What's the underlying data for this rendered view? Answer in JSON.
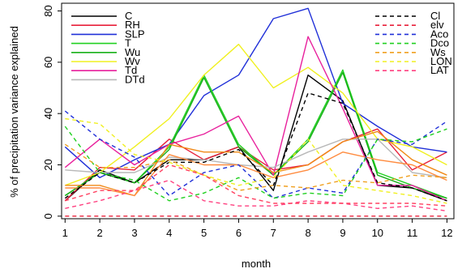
{
  "chart_data": {
    "type": "line",
    "xlabel": "month",
    "ylabel": "% of precipitation variance explained",
    "x": [
      1,
      2,
      3,
      4,
      5,
      6,
      7,
      8,
      9,
      10,
      11,
      12
    ],
    "xticks": [
      "1",
      "2",
      "3",
      "4",
      "5",
      "6",
      "7",
      "8",
      "9",
      "10",
      "11",
      "12"
    ],
    "yticks": [
      "0",
      "20",
      "40",
      "60",
      "80"
    ],
    "xlim": [
      0.9,
      12.2
    ],
    "ylim": [
      -1,
      83
    ],
    "grid": false,
    "legend_left": [
      "C",
      "RH",
      "SLP",
      "T",
      "Wu",
      "Wv",
      "Td",
      "DTd"
    ],
    "legend_right": [
      "Cl",
      "elv",
      "Aco",
      "Dco",
      "Ws",
      "LON",
      "LAT"
    ],
    "series": [
      {
        "name": "C",
        "color": "#000000",
        "dash": "solid",
        "values": [
          6,
          18,
          13,
          22,
          22,
          27,
          10,
          55,
          45,
          12,
          11,
          6
        ]
      },
      {
        "name": "RH",
        "color": "#e8203a",
        "dash": "solid",
        "values": [
          6,
          19,
          18,
          30,
          22,
          27,
          18,
          20,
          29,
          34,
          18,
          25
        ]
      },
      {
        "name": "SLP",
        "color": "#2030d8",
        "dash": "solid",
        "values": [
          27,
          15,
          22,
          28,
          47,
          55,
          77,
          81,
          44,
          35,
          27,
          25
        ]
      },
      {
        "name": "T",
        "color": "#20d020",
        "dash": "solid",
        "values": [
          8,
          17,
          13,
          27,
          55,
          28,
          16,
          30,
          57,
          17,
          12,
          7
        ]
      },
      {
        "name": "Wu",
        "color": "#18b018",
        "dash": "solid",
        "values": [
          8,
          17,
          13,
          26,
          54,
          27,
          16,
          29,
          56,
          16,
          11,
          7
        ]
      },
      {
        "name": "Wv",
        "color": "#f0f020",
        "dash": "solid",
        "values": [
          12,
          17,
          27,
          38,
          55,
          67,
          50,
          58,
          48,
          30,
          27,
          20
        ]
      },
      {
        "name": "Td",
        "color": "#e8209c",
        "dash": "solid",
        "values": [
          19,
          30,
          20,
          28,
          32,
          39,
          16,
          70,
          42,
          12,
          12,
          6
        ]
      },
      {
        "name": "DTd",
        "color": "#b8b8b8",
        "dash": "solid",
        "values": [
          18,
          17,
          17,
          23,
          22,
          20,
          19,
          25,
          30,
          30,
          17,
          15
        ]
      },
      {
        "name": "",
        "color": "#f08a18",
        "dash": "solid",
        "values": [
          12,
          12,
          8,
          28,
          25,
          25,
          17,
          20,
          29,
          33,
          22,
          16
        ]
      },
      {
        "name": "",
        "color": "#ff8c40",
        "dash": "solid",
        "values": [
          11,
          11,
          8,
          24,
          20,
          20,
          15,
          18,
          25,
          22,
          20,
          14
        ]
      },
      {
        "name": "Cl",
        "color": "#000000",
        "dash": "dashed",
        "values": [
          7,
          17,
          13,
          21,
          21,
          26,
          12,
          48,
          44,
          13,
          11,
          6
        ]
      },
      {
        "name": "elv",
        "color": "#e8203a",
        "dash": "dashed",
        "values": [
          0,
          0,
          0,
          0,
          0,
          0,
          0,
          0,
          0,
          0,
          0,
          0
        ]
      },
      {
        "name": "Aco",
        "color": "#2030d8",
        "dash": "dashed",
        "values": [
          41,
          30,
          23,
          8,
          17,
          20,
          7,
          11,
          9,
          30,
          28,
          37
        ]
      },
      {
        "name": "Dco",
        "color": "#20d020",
        "dash": "dashed",
        "values": [
          35,
          17,
          14,
          6,
          9,
          15,
          7,
          9,
          8,
          30,
          29,
          34
        ]
      },
      {
        "name": "Ws",
        "color": "#f0a020",
        "dash": "dashed",
        "values": [
          28,
          19,
          19,
          22,
          16,
          10,
          12,
          11,
          14,
          13,
          16,
          15
        ]
      },
      {
        "name": "LON",
        "color": "#f0f020",
        "dash": "dashed",
        "values": [
          38,
          36,
          24,
          21,
          16,
          12,
          15,
          30,
          12,
          10,
          8,
          5
        ]
      },
      {
        "name": "LAT",
        "color": "#ff4080",
        "dash": "dashed",
        "values": [
          3,
          6,
          10,
          14,
          6,
          4,
          4,
          6,
          5,
          3,
          4,
          2
        ]
      },
      {
        "name": "",
        "color": "#ff4060",
        "dash": "dashed",
        "values": [
          6,
          10,
          10,
          20,
          16,
          8,
          5,
          5,
          5,
          5,
          5,
          4
        ]
      }
    ]
  }
}
